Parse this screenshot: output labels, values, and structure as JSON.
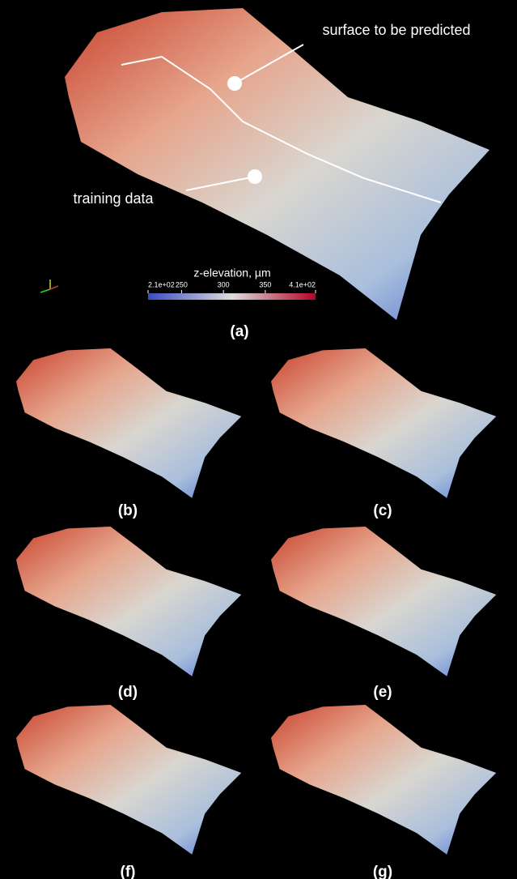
{
  "annotations": {
    "predicted": "surface to be predicted",
    "training": "training data"
  },
  "colorbar": {
    "title": "z-elevation, µm",
    "ticks": [
      {
        "value": 210,
        "label": "2.1e+02"
      },
      250,
      300,
      350,
      {
        "value": 410,
        "label": "4.1e+02"
      }
    ]
  },
  "panels": [
    "(a)",
    "(b)",
    "(c)",
    "(d)",
    "(e)",
    "(f)",
    "(g)"
  ]
}
